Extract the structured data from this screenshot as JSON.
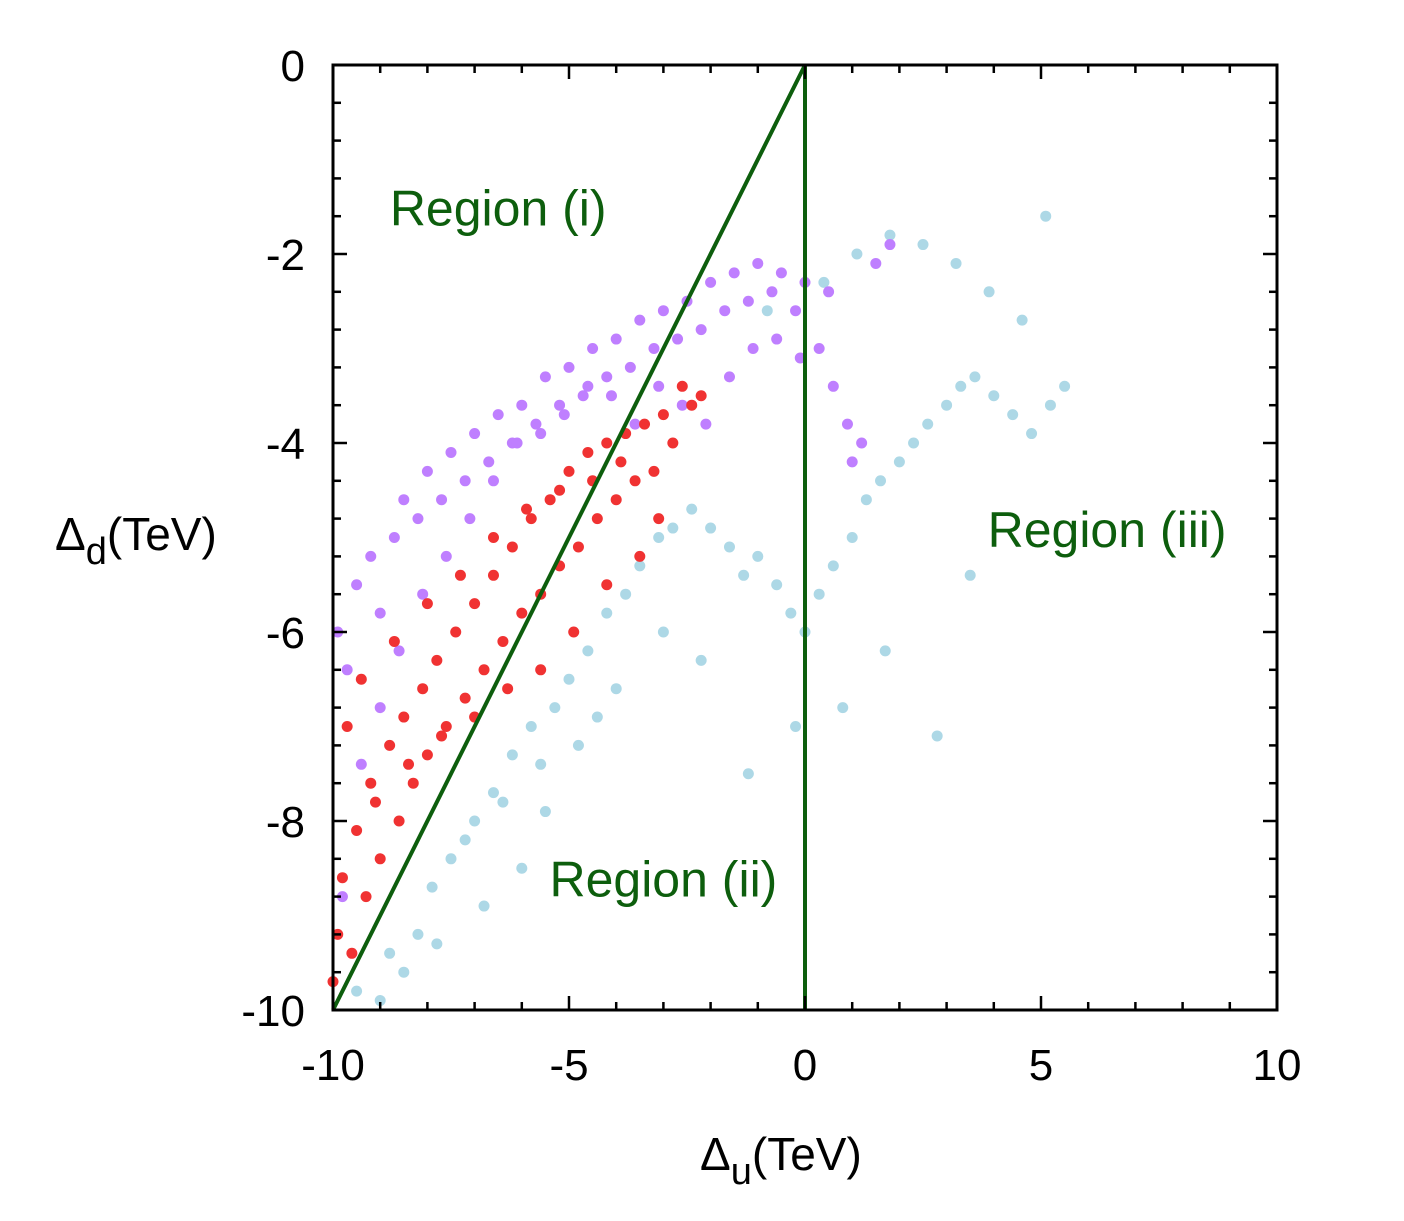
{
  "chart_data": {
    "type": "scatter",
    "title": "",
    "xlabel": {
      "symbol": "Δ",
      "subscript": "u",
      "unit": "(TeV)"
    },
    "ylabel": {
      "symbol": "Δ",
      "subscript": "d",
      "unit": "(TeV)"
    },
    "xlim": [
      -10,
      10
    ],
    "ylim": [
      -10,
      0
    ],
    "xticks": [
      -10,
      -5,
      0,
      5,
      10
    ],
    "yticks": [
      -10,
      -8,
      -6,
      -4,
      -2,
      0
    ],
    "xtick_labels": [
      "-10",
      "-5",
      "0",
      "5",
      "10"
    ],
    "ytick_labels": [
      "-10",
      "-8",
      "-6",
      "-4",
      "-2",
      "0"
    ],
    "grid": false,
    "legend": "none",
    "colors": {
      "cyan_series": "#add8e6",
      "violet_series": "#bf7fff",
      "red_series": "#f03232",
      "boundary": "#0d5e0d",
      "axis": "#000000"
    },
    "series": [
      {
        "color_key": "cyan_series",
        "x": [
          -9.5,
          -8.8,
          -8.2,
          -7.9,
          -7.5,
          -7.0,
          -6.6,
          -6.2,
          -5.8,
          -5.3,
          -5.0,
          -4.6,
          -4.2,
          -3.8,
          -3.5,
          -3.1,
          -2.8,
          -2.4,
          -2.0,
          -1.6,
          -1.3,
          -1.0,
          -0.6,
          -0.3,
          0.0,
          0.3,
          0.6,
          1.0,
          1.3,
          1.6,
          2.0,
          2.3,
          2.6,
          3.0,
          3.3,
          3.6,
          4.0,
          4.4,
          4.8,
          5.2,
          5.5,
          -0.8,
          0.4,
          1.1,
          1.8,
          2.5,
          3.2,
          3.9,
          4.6,
          5.1,
          -5.5,
          -4.0,
          -3.0,
          -2.2,
          -1.2,
          -0.2,
          0.8,
          1.7,
          2.8,
          3.5,
          -9.0,
          -8.5,
          -7.8,
          -6.8,
          -6.0,
          -7.2,
          -6.4,
          -5.6,
          -4.8,
          -4.4
        ],
        "y": [
          -9.8,
          -9.4,
          -9.2,
          -8.7,
          -8.4,
          -8.0,
          -7.7,
          -7.3,
          -7.0,
          -6.8,
          -6.5,
          -6.2,
          -5.8,
          -5.6,
          -5.3,
          -5.0,
          -4.9,
          -4.7,
          -4.9,
          -5.1,
          -5.4,
          -5.2,
          -5.5,
          -5.8,
          -6.0,
          -5.6,
          -5.3,
          -5.0,
          -4.6,
          -4.4,
          -4.2,
          -4.0,
          -3.8,
          -3.6,
          -3.4,
          -3.3,
          -3.5,
          -3.7,
          -3.9,
          -3.6,
          -3.4,
          -2.6,
          -2.3,
          -2.0,
          -1.8,
          -1.9,
          -2.1,
          -2.4,
          -2.7,
          -1.6,
          -7.9,
          -6.6,
          -6.0,
          -6.3,
          -7.5,
          -7.0,
          -6.8,
          -6.2,
          -7.1,
          -5.4,
          -9.9,
          -9.6,
          -9.3,
          -8.9,
          -8.5,
          -8.2,
          -7.8,
          -7.4,
          -7.2,
          -6.9
        ]
      },
      {
        "color_key": "violet_series",
        "x": [
          -9.9,
          -9.7,
          -9.5,
          -9.2,
          -9.0,
          -8.7,
          -8.5,
          -8.2,
          -8.0,
          -7.7,
          -7.5,
          -7.2,
          -7.0,
          -6.7,
          -6.5,
          -6.2,
          -6.0,
          -5.7,
          -5.5,
          -5.2,
          -5.0,
          -4.7,
          -4.5,
          -4.2,
          -4.0,
          -3.7,
          -3.5,
          -3.2,
          -3.0,
          -2.7,
          -2.5,
          -2.2,
          -2.0,
          -1.7,
          -1.5,
          -1.2,
          -1.0,
          -0.7,
          -0.5,
          -0.2,
          0.0,
          0.3,
          0.6,
          0.9,
          1.2,
          1.5,
          -9.8,
          -9.4,
          -9.0,
          -8.6,
          -8.1,
          -7.6,
          -7.1,
          -6.6,
          -6.1,
          -5.6,
          -5.1,
          -4.6,
          -4.1,
          -3.6,
          -3.1,
          -2.6,
          -2.1,
          -1.6,
          -1.1,
          -0.6,
          -0.1,
          0.5,
          1.0,
          1.8
        ],
        "y": [
          -6.0,
          -6.4,
          -5.5,
          -5.2,
          -5.8,
          -5.0,
          -4.6,
          -4.8,
          -4.3,
          -4.6,
          -4.1,
          -4.4,
          -3.9,
          -4.2,
          -3.7,
          -4.0,
          -3.6,
          -3.8,
          -3.3,
          -3.6,
          -3.2,
          -3.5,
          -3.0,
          -3.3,
          -2.9,
          -3.2,
          -2.7,
          -3.0,
          -2.6,
          -2.9,
          -2.5,
          -2.8,
          -2.3,
          -2.6,
          -2.2,
          -2.5,
          -2.1,
          -2.4,
          -2.2,
          -2.6,
          -2.3,
          -3.0,
          -3.4,
          -3.8,
          -4.0,
          -2.1,
          -8.8,
          -7.4,
          -6.8,
          -6.2,
          -5.6,
          -5.2,
          -4.8,
          -4.4,
          -4.0,
          -3.9,
          -3.7,
          -3.4,
          -3.5,
          -3.8,
          -3.4,
          -3.6,
          -3.8,
          -3.3,
          -3.0,
          -2.9,
          -3.1,
          -2.4,
          -4.2,
          -1.9
        ]
      },
      {
        "color_key": "red_series",
        "x": [
          -10.0,
          -9.9,
          -9.8,
          -9.6,
          -9.5,
          -9.3,
          -9.2,
          -9.0,
          -8.8,
          -8.6,
          -8.5,
          -8.3,
          -8.1,
          -8.0,
          -7.8,
          -7.6,
          -7.4,
          -7.2,
          -7.0,
          -6.8,
          -6.6,
          -6.4,
          -6.2,
          -6.0,
          -5.8,
          -5.6,
          -5.4,
          -5.2,
          -5.0,
          -4.8,
          -4.6,
          -4.4,
          -4.2,
          -4.0,
          -3.8,
          -3.6,
          -3.4,
          -3.2,
          -3.0,
          -2.8,
          -2.6,
          -2.4,
          -2.2,
          -9.7,
          -9.4,
          -9.1,
          -8.7,
          -8.4,
          -8.0,
          -7.7,
          -7.3,
          -7.0,
          -6.6,
          -6.3,
          -5.9,
          -5.6,
          -5.2,
          -4.9,
          -4.5,
          -4.2,
          -3.9,
          -3.5,
          -3.1
        ],
        "y": [
          -9.7,
          -9.2,
          -8.6,
          -9.4,
          -8.1,
          -8.8,
          -7.6,
          -8.4,
          -7.2,
          -8.0,
          -6.9,
          -7.6,
          -6.6,
          -7.3,
          -6.3,
          -7.0,
          -6.0,
          -6.7,
          -5.7,
          -6.4,
          -5.4,
          -6.1,
          -5.1,
          -5.8,
          -4.8,
          -5.6,
          -4.6,
          -5.3,
          -4.3,
          -5.1,
          -4.1,
          -4.8,
          -4.0,
          -4.6,
          -3.9,
          -4.4,
          -3.8,
          -4.3,
          -3.7,
          -4.0,
          -3.4,
          -3.6,
          -3.5,
          -7.0,
          -6.5,
          -7.8,
          -6.1,
          -7.4,
          -5.7,
          -7.1,
          -5.4,
          -6.9,
          -5.0,
          -6.6,
          -4.7,
          -6.4,
          -4.5,
          -6.0,
          -4.4,
          -5.5,
          -4.2,
          -5.2,
          -4.8
        ]
      }
    ],
    "lines": [
      {
        "name": "diagonal",
        "x": [
          -10,
          0
        ],
        "y": [
          -10,
          0
        ]
      },
      {
        "name": "vertical",
        "x": [
          0,
          0
        ],
        "y": [
          -10,
          0
        ]
      }
    ],
    "annotations": [
      {
        "text": "Region (i)",
        "x": -6.5,
        "y": -1.7
      },
      {
        "text": "Region (ii)",
        "x": -3.0,
        "y": -8.8
      },
      {
        "text": "Region (iii)",
        "x": 6.4,
        "y": -5.1
      }
    ]
  }
}
